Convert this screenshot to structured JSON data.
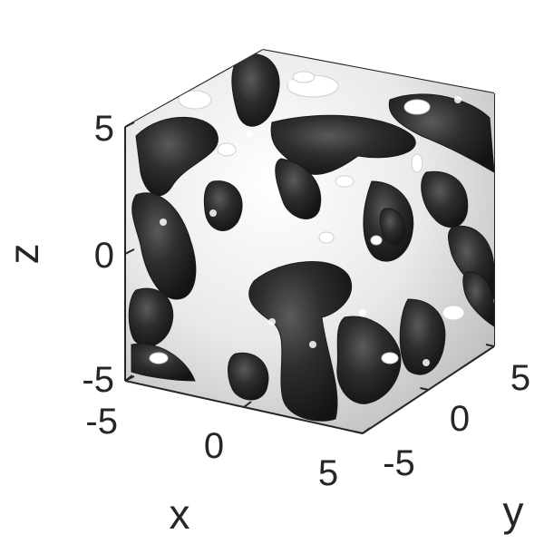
{
  "chart_data": {
    "type": "isosurface",
    "title": "",
    "xlabel": "x",
    "ylabel": "y",
    "zlabel": "z",
    "xlim": [
      -5,
      5
    ],
    "ylim": [
      -5,
      5
    ],
    "zlim": [
      -5,
      5
    ],
    "x_ticks": [
      {
        "value": -5,
        "label": "-5"
      },
      {
        "value": 0,
        "label": "0"
      },
      {
        "value": 5,
        "label": "5"
      }
    ],
    "y_ticks": [
      {
        "value": -5,
        "label": "-5"
      },
      {
        "value": 0,
        "label": "0"
      },
      {
        "value": 5,
        "label": "5"
      }
    ],
    "z_ticks": [
      {
        "value": -5,
        "label": "-5"
      },
      {
        "value": 0,
        "label": "0"
      },
      {
        "value": 5,
        "label": "5"
      }
    ],
    "surface_colors": {
      "outer": "#e6e6e6",
      "inner": "#2b2b2b"
    },
    "grid": false,
    "box": "partial"
  }
}
